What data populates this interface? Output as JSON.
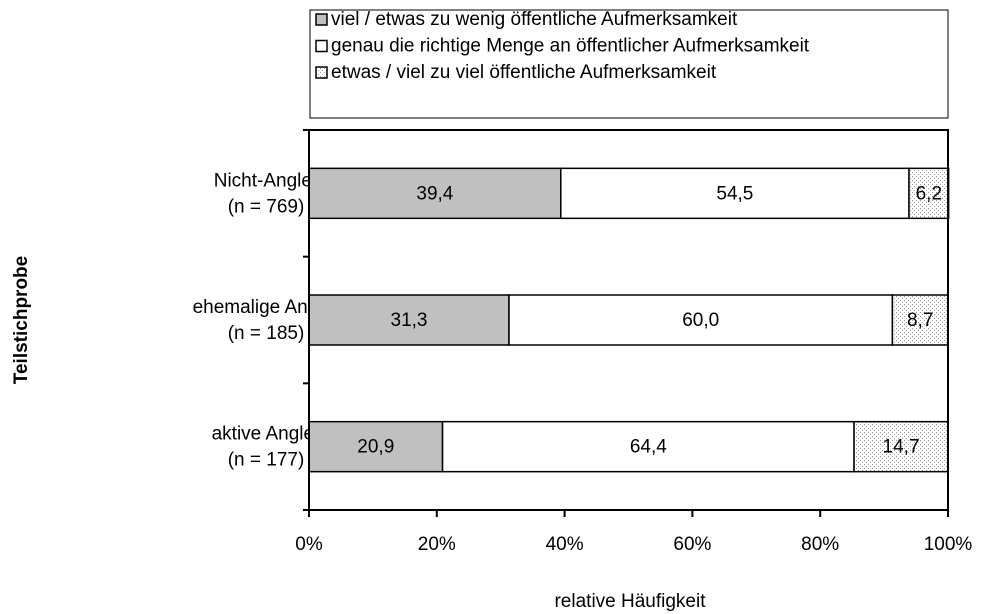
{
  "chart_data": {
    "type": "stacked-barh",
    "categories": [
      [
        "Nicht-Angler",
        "(n = 769)"
      ],
      [
        "ehemalige Angler",
        "(n = 185)"
      ],
      [
        "aktive Angler",
        "(n = 177)"
      ]
    ],
    "series": [
      {
        "name": "viel / etwas zu wenig öffentliche Aufmerksamkeit",
        "color": "#c0c0c0",
        "values": [
          39.4,
          31.3,
          20.9
        ],
        "value_labels": [
          "39,4",
          "31,3",
          "20,9"
        ]
      },
      {
        "name": "genau die richtige Menge an öffentlicher Aufmerksamkeit",
        "color": "#ffffff",
        "values": [
          54.5,
          60.0,
          64.4
        ],
        "value_labels": [
          "54,5",
          "60,0",
          "64,4"
        ]
      },
      {
        "name": "etwas / viel zu viel öffentliche Aufmerksamkeit",
        "color": "#e6e6e6",
        "pattern": "dotted",
        "values": [
          6.2,
          8.7,
          14.7
        ],
        "value_labels": [
          "6,2",
          "8,7",
          "14,7"
        ]
      }
    ],
    "xlim": [
      0,
      100
    ],
    "xticks": [
      {
        "value": 0,
        "label": "0%"
      },
      {
        "value": 20,
        "label": "20%"
      },
      {
        "value": 40,
        "label": "40%"
      },
      {
        "value": 60,
        "label": "60%"
      },
      {
        "value": 80,
        "label": "80%"
      },
      {
        "value": 100,
        "label": "100%"
      }
    ],
    "xlabel": "relative Häufigkeit",
    "ylabel": "Teilstichprobe"
  }
}
